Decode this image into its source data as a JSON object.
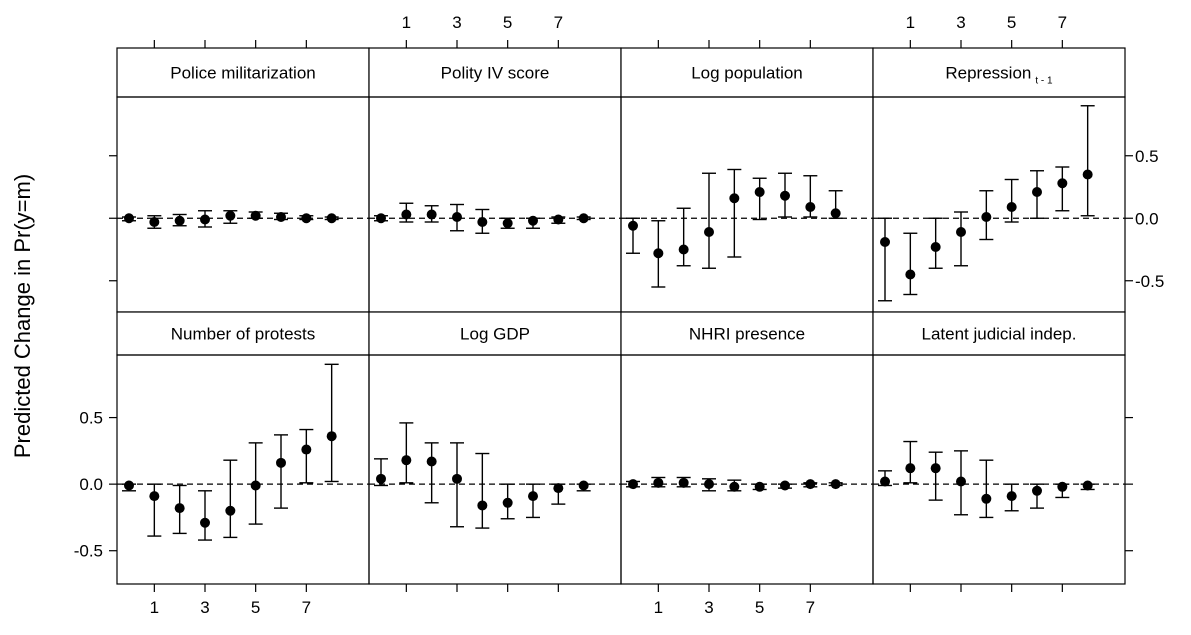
{
  "chart_data": {
    "type": "scatter",
    "subtype": "point-range lattice (error bars)",
    "ylabel": "Predicted Change in Pr(y=m)",
    "xlabel": "",
    "layout": {
      "rows": 2,
      "cols": 4,
      "top_row_first": true
    },
    "x_ticks": [
      1,
      3,
      5,
      7
    ],
    "x_tick_labels": [
      "1",
      "3",
      "5",
      "7"
    ],
    "xlim": [
      0,
      9
    ],
    "ylim": [
      -0.75,
      0.97
    ],
    "y_ticks": [
      -0.5,
      0.0,
      0.5
    ],
    "y_tick_labels": [
      "-0.5",
      "0.0",
      "0.5"
    ],
    "reference_line": 0,
    "grid": false,
    "panels": [
      {
        "title": "Police militarization",
        "x": [
          0,
          1,
          2,
          3,
          4,
          5,
          6,
          7,
          8
        ],
        "est": [
          0.0,
          -0.03,
          -0.02,
          -0.01,
          0.02,
          0.02,
          0.01,
          0.0,
          0.0
        ],
        "lower": [
          -0.02,
          -0.08,
          -0.06,
          -0.07,
          -0.04,
          0.0,
          -0.01,
          -0.01,
          -0.01
        ],
        "upper": [
          0.01,
          0.02,
          0.03,
          0.06,
          0.06,
          0.05,
          0.04,
          0.02,
          0.01
        ]
      },
      {
        "title": "Polity IV score",
        "x": [
          0,
          1,
          2,
          3,
          4,
          5,
          6,
          7,
          8
        ],
        "est": [
          0.0,
          0.03,
          0.03,
          0.01,
          -0.03,
          -0.04,
          -0.02,
          -0.01,
          0.0
        ],
        "lower": [
          -0.02,
          -0.03,
          -0.03,
          -0.1,
          -0.12,
          -0.08,
          -0.08,
          -0.04,
          -0.01
        ],
        "upper": [
          0.02,
          0.12,
          0.1,
          0.11,
          0.07,
          0.0,
          0.0,
          0.01,
          0.01
        ]
      },
      {
        "title": "Log population",
        "x": [
          0,
          1,
          2,
          3,
          4,
          5,
          6,
          7,
          8
        ],
        "est": [
          -0.06,
          -0.28,
          -0.25,
          -0.11,
          0.16,
          0.21,
          0.18,
          0.09,
          0.04
        ],
        "lower": [
          -0.28,
          -0.55,
          -0.38,
          -0.4,
          -0.31,
          -0.01,
          0.01,
          0.01,
          0.0
        ],
        "upper": [
          0.0,
          -0.02,
          0.08,
          0.36,
          0.39,
          0.32,
          0.36,
          0.34,
          0.22
        ]
      },
      {
        "title": "Repression",
        "title_subscript": "t - 1",
        "x": [
          0,
          1,
          2,
          3,
          4,
          5,
          6,
          7,
          8
        ],
        "est": [
          -0.19,
          -0.45,
          -0.23,
          -0.11,
          0.01,
          0.09,
          0.21,
          0.28,
          0.35
        ],
        "lower": [
          -0.66,
          -0.61,
          -0.4,
          -0.38,
          -0.17,
          -0.03,
          0.0,
          0.06,
          0.02
        ],
        "upper": [
          0.0,
          -0.12,
          0.0,
          0.05,
          0.22,
          0.31,
          0.38,
          0.41,
          0.9
        ]
      },
      {
        "title": "Number of protests",
        "x": [
          0,
          1,
          2,
          3,
          4,
          5,
          6,
          7,
          8
        ],
        "est": [
          -0.01,
          -0.09,
          -0.18,
          -0.29,
          -0.2,
          -0.01,
          0.16,
          0.26,
          0.36
        ],
        "lower": [
          -0.05,
          -0.39,
          -0.37,
          -0.42,
          -0.4,
          -0.3,
          -0.18,
          0.01,
          0.02
        ],
        "upper": [
          0.0,
          0.0,
          -0.01,
          -0.05,
          0.18,
          0.31,
          0.37,
          0.41,
          0.9
        ]
      },
      {
        "title": "Log GDP",
        "x": [
          0,
          1,
          2,
          3,
          4,
          5,
          6,
          7,
          8
        ],
        "est": [
          0.04,
          0.18,
          0.17,
          0.04,
          -0.16,
          -0.14,
          -0.09,
          -0.03,
          -0.01
        ],
        "lower": [
          -0.01,
          0.01,
          -0.14,
          -0.32,
          -0.33,
          -0.26,
          -0.25,
          -0.15,
          -0.05
        ],
        "upper": [
          0.19,
          0.46,
          0.31,
          0.31,
          0.23,
          0.0,
          0.0,
          0.0,
          0.0
        ]
      },
      {
        "title": "NHRI presence",
        "x": [
          0,
          1,
          2,
          3,
          4,
          5,
          6,
          7,
          8
        ],
        "est": [
          0.0,
          0.01,
          0.01,
          0.0,
          -0.02,
          -0.02,
          -0.01,
          0.0,
          0.0
        ],
        "lower": [
          -0.02,
          -0.02,
          -0.02,
          -0.05,
          -0.05,
          -0.04,
          -0.03,
          -0.02,
          -0.01
        ],
        "upper": [
          0.02,
          0.05,
          0.05,
          0.04,
          0.03,
          0.0,
          0.0,
          0.01,
          0.01
        ]
      },
      {
        "title": "Latent judicial indep.",
        "x": [
          0,
          1,
          2,
          3,
          4,
          5,
          6,
          7,
          8
        ],
        "est": [
          0.02,
          0.12,
          0.12,
          0.02,
          -0.11,
          -0.09,
          -0.05,
          -0.02,
          -0.01
        ],
        "lower": [
          -0.01,
          0.01,
          -0.12,
          -0.23,
          -0.25,
          -0.2,
          -0.18,
          -0.1,
          -0.04
        ],
        "upper": [
          0.1,
          0.32,
          0.24,
          0.25,
          0.18,
          0.0,
          0.0,
          0.0,
          0.0
        ]
      }
    ]
  }
}
